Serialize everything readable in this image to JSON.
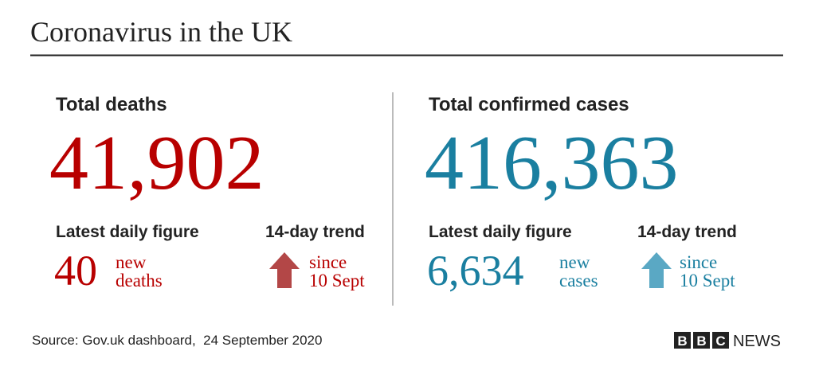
{
  "header": {
    "title": "Coronavirus in the UK"
  },
  "panels": [
    {
      "heading": "Total deaths",
      "total": "41,902",
      "daily_label": "Latest daily figure",
      "daily_value": "40",
      "daily_unit": [
        "new",
        "deaths"
      ],
      "trend_label": "14-day trend",
      "trend_note": [
        "since",
        "10 Sept"
      ]
    },
    {
      "heading": "Total confirmed cases",
      "total": "416,363",
      "daily_label": "Latest daily figure",
      "daily_value": "6,634",
      "daily_unit": [
        "new",
        "cases"
      ],
      "trend_label": "14-day trend",
      "trend_note": [
        "since",
        "10 Sept"
      ]
    }
  ],
  "footer": {
    "source": "Source: Gov.uk dashboard,  24 September 2020",
    "logo": {
      "blocks": [
        "B",
        "B",
        "C"
      ],
      "text": "NEWS"
    }
  }
}
